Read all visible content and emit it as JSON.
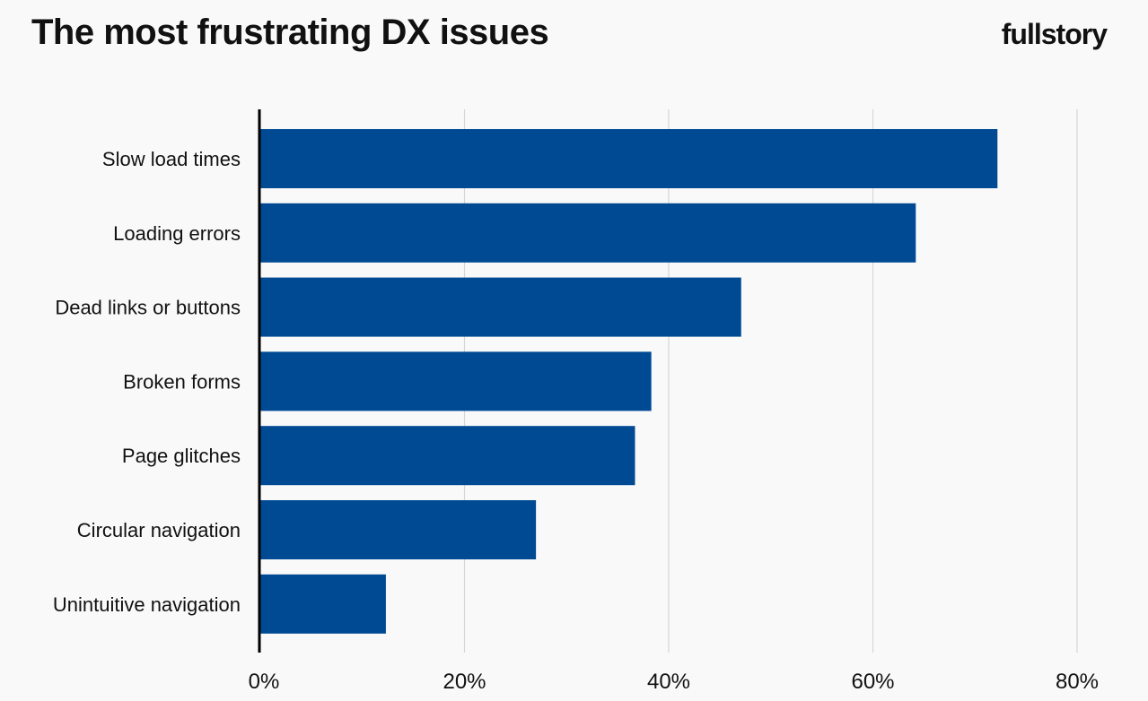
{
  "header": {
    "title": "The most frustrating DX issues",
    "brand": "fullstory"
  },
  "colors": {
    "bar": "#004a94",
    "axis": "#000000",
    "grid": "#d6d6d6",
    "background": "#f9f9f9"
  },
  "chart_data": {
    "type": "bar",
    "orientation": "horizontal",
    "title": "The most frustrating DX issues",
    "categories": [
      "Slow load times",
      "Loading errors",
      "Dead links or buttons",
      "Broken forms",
      "Page glitches",
      "Circular navigation",
      "Unintuitive navigation"
    ],
    "values": [
      72.2,
      64.2,
      47.1,
      38.3,
      36.7,
      27.0,
      12.3
    ],
    "xlim": [
      0,
      80
    ],
    "x_ticks": [
      0,
      20,
      40,
      60,
      80
    ],
    "x_tick_labels": [
      "0%",
      "20%",
      "40%",
      "60%",
      "80%"
    ],
    "grid": true,
    "legend": "none"
  }
}
